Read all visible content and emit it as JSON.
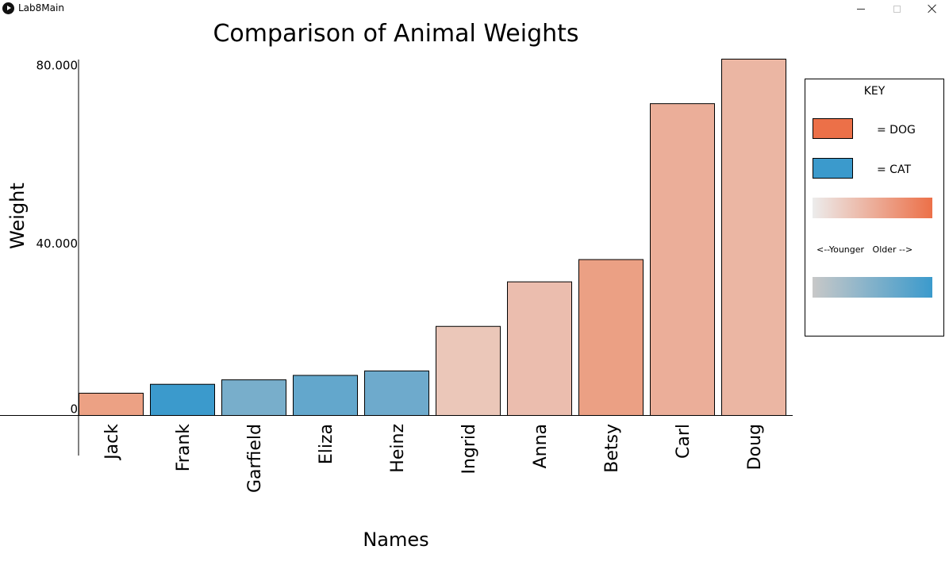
{
  "window": {
    "title": "Lab8Main",
    "controls": [
      "minimize",
      "maximize",
      "close"
    ]
  },
  "chart_data": {
    "type": "bar",
    "title": "Comparison of Animal Weights",
    "xlabel": "Names",
    "ylabel": "Weight",
    "ylim": [
      0,
      80
    ],
    "yticks": [
      {
        "value": 0,
        "label": "0"
      },
      {
        "value": 40,
        "label": "40.000"
      },
      {
        "value": 80,
        "label": "80.000"
      }
    ],
    "categories": [
      "Jack",
      "Frank",
      "Garfield",
      "Eliza",
      "Heinz",
      "Ingrid",
      "Anna",
      "Betsy",
      "Carl",
      "Doug"
    ],
    "values": [
      5,
      7,
      8,
      9,
      10,
      20,
      30,
      35,
      70,
      80
    ],
    "animal_type": [
      "DOG",
      "CAT",
      "CAT",
      "CAT",
      "CAT",
      "DOG",
      "DOG",
      "DOG",
      "DOG",
      "DOG"
    ],
    "bar_colors": [
      "#eca184",
      "#3b9acc",
      "#78aecb",
      "#63a7cc",
      "#6eaacc",
      "#ebc7b9",
      "#ebbdae",
      "#eba084",
      "#ebae99",
      "#ebb6a3"
    ],
    "grid": false,
    "legend_position": "right"
  },
  "key": {
    "title": "KEY",
    "dog_label": "= DOG",
    "cat_label": "= CAT",
    "age_label": "<--Younger   Older -->",
    "dog_color": "#ec7048",
    "cat_color": "#3b9acc",
    "dog_gradient": [
      "#ececec",
      "#ec7048"
    ],
    "cat_gradient": [
      "#c8c8c8",
      "#3b9acc"
    ]
  }
}
